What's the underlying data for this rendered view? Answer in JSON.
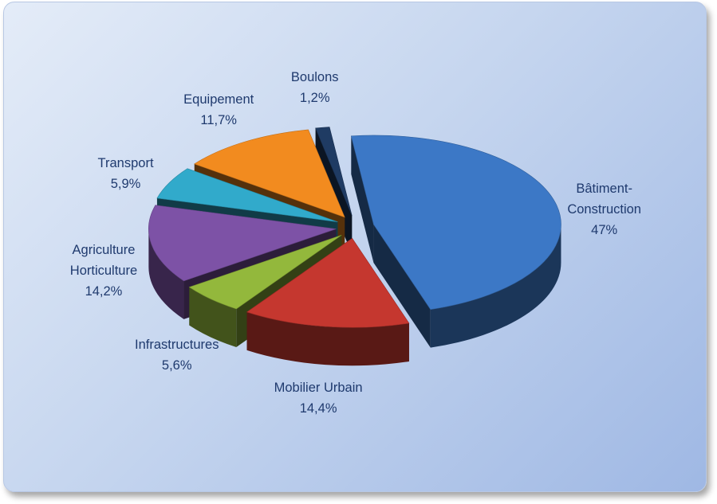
{
  "chart_data": {
    "type": "pie3d",
    "categories": [
      "Bâtiment-Construction",
      "Mobilier Urbain",
      "Infrastructures",
      "Agriculture Horticulture",
      "Transport",
      "Equipement",
      "Boulons"
    ],
    "values": [
      47,
      14.4,
      5.6,
      14.2,
      5.9,
      11.7,
      1.2
    ],
    "value_labels": [
      "47%",
      "14,4%",
      "5,6%",
      "14,2%",
      "5,9%",
      "11,7%",
      "1,2%"
    ],
    "colors": [
      "#3c78c6",
      "#c5372f",
      "#93b83c",
      "#7d52a6",
      "#31aacb",
      "#f28b1f",
      "#1f3b63"
    ]
  }
}
